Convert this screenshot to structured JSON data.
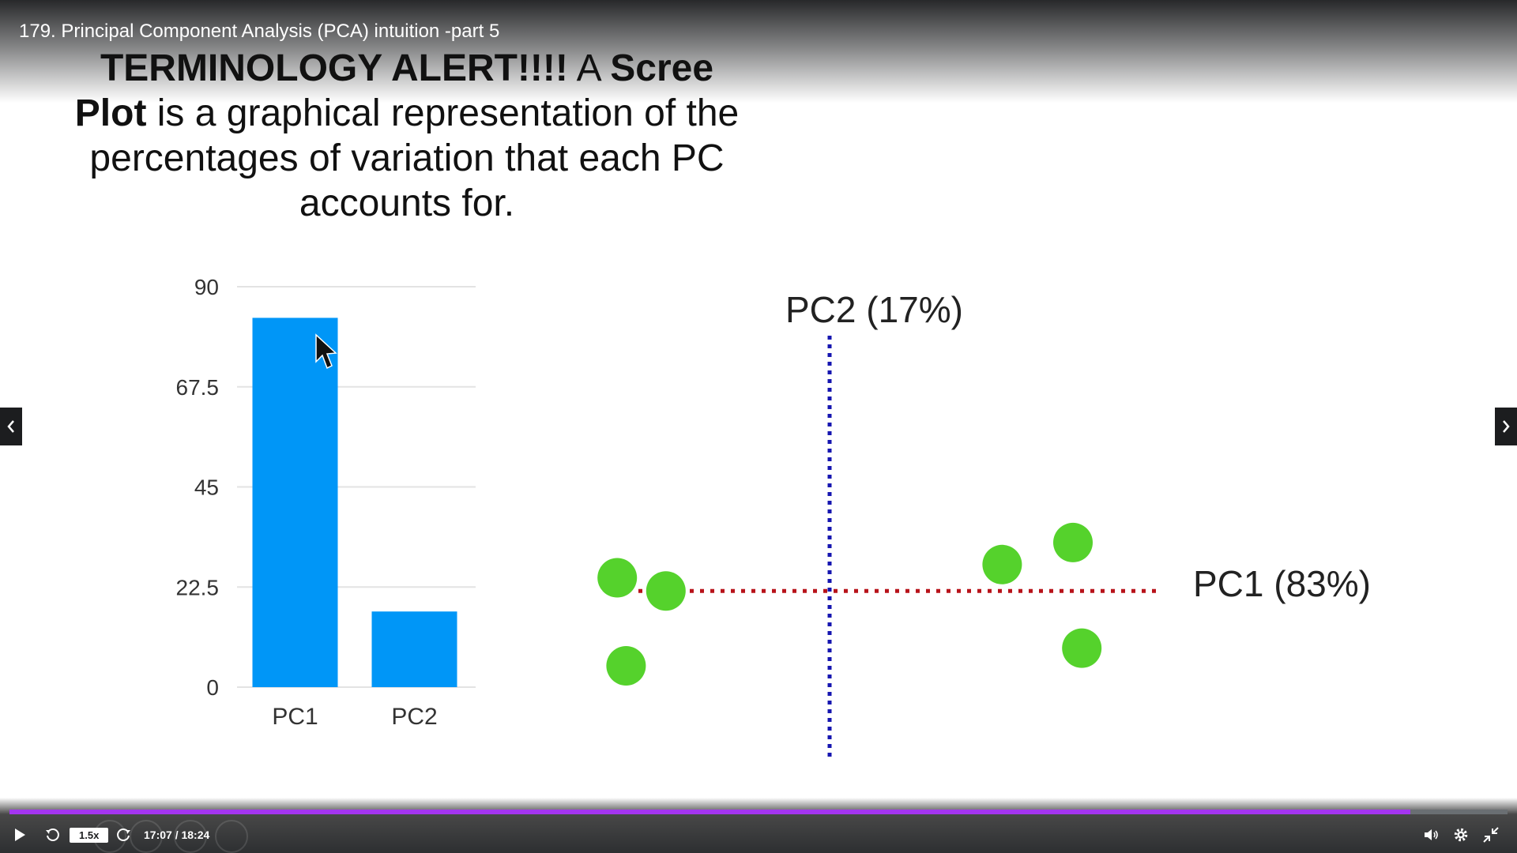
{
  "lecture": {
    "title": "179. Principal Component Analysis (PCA) intuition -part 5"
  },
  "slide": {
    "heading": {
      "bold_1": "TERMINOLOGY ALERT!!!!",
      "text_1": " A ",
      "bold_2": "Scree Plot",
      "text_2": " is a graphical representation of the percentages of variation that each PC accounts for."
    }
  },
  "chart_data": [
    {
      "type": "bar",
      "categories": [
        "PC1",
        "PC2"
      ],
      "values": [
        83,
        17
      ],
      "yticks": [
        "0",
        "22.5",
        "45",
        "67.5",
        "90"
      ],
      "ylim": [
        0,
        90
      ],
      "grid": true,
      "color": "#0096f7"
    },
    {
      "type": "scatter",
      "xlabel": "PC1 (83%)",
      "ylabel": "PC2 (17%)",
      "xlim": [
        -5,
        7.5
      ],
      "ylim": [
        -3.8,
        5.8
      ],
      "points": [
        {
          "x": -4.8,
          "y": 0.3
        },
        {
          "x": -3.7,
          "y": 0.0
        },
        {
          "x": -4.6,
          "y": -1.7
        },
        {
          "x": 3.9,
          "y": 0.6
        },
        {
          "x": 5.5,
          "y": 1.1
        },
        {
          "x": 5.7,
          "y": -1.3
        }
      ],
      "x_axis_color": "#b8131a",
      "y_axis_color": "#1616b0",
      "point_color": "#55d22c"
    }
  ],
  "player": {
    "speed": "1.5x",
    "time": "17:07 / 18:24",
    "progress": 0.935
  }
}
